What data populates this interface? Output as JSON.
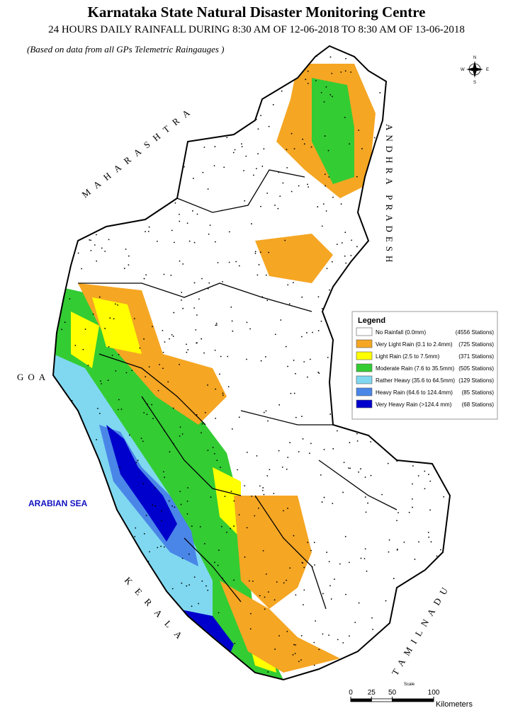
{
  "header": {
    "title": "Karnataka State Natural Disaster Monitoring Centre",
    "subtitle": "24 HOURS DAILY RAINFALL DURING 8:30 AM OF  12-06-2018 TO 8:30 AM OF 13-06-2018",
    "note": "(Based on data from all GPs Telemetric Raingauges )"
  },
  "map": {
    "neighbours": {
      "maharashtra": "MAHARASHTRA",
      "andhra_pradesh": "ANDHRA PRADESH",
      "goa": "GOA",
      "arabian_sea": "ARABIAN SEA",
      "kerala": "KERALA",
      "tamil_nadu": "TAMILNADU"
    },
    "compass": {
      "n": "N",
      "s": "S",
      "e": "E",
      "w": "W"
    }
  },
  "legend": {
    "title": "Legend",
    "items": [
      {
        "label": "No Rainfall (0.0mm)",
        "stations": "(4556 Stations)",
        "color": "#ffffff"
      },
      {
        "label": "Very Light Rain (0.1 to 2.4mm)",
        "stations": "(725 Stations)",
        "color": "#f5a623"
      },
      {
        "label": "Light Rain (2.5 to 7.5mm)",
        "stations": "(371 Stations)",
        "color": "#ffff00"
      },
      {
        "label": "Moderate Rain (7.6 to 35.5mm)",
        "stations": "(505 Stations)",
        "color": "#33cc33"
      },
      {
        "label": "Rather Heavy (35.6 to 64.5mm)",
        "stations": "(129 Stations)",
        "color": "#7fd8f0"
      },
      {
        "label": "Heavy Rain (64.6 to 124.4mm)",
        "stations": "(85 Stations)",
        "color": "#4a86e8"
      },
      {
        "label": "Very Heavy Rain (>124.4 mm)",
        "stations": "(68 Stations)",
        "color": "#0000cc"
      }
    ]
  },
  "scale": {
    "title": "Scale",
    "ticks": [
      0,
      25,
      50,
      100
    ],
    "unit": "Kilometers"
  }
}
